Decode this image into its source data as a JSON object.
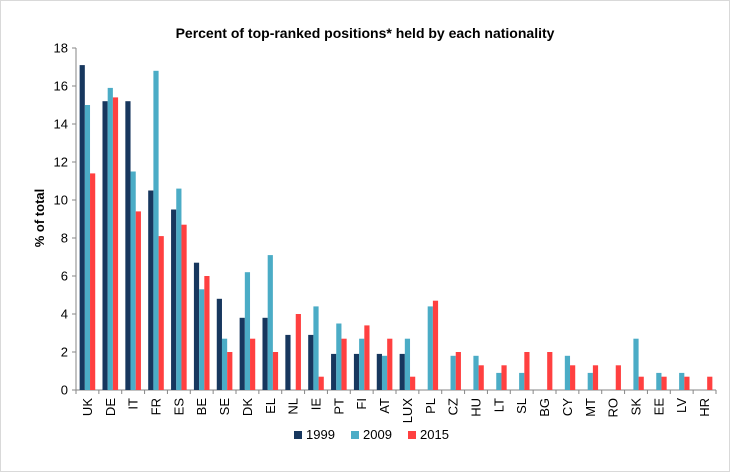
{
  "chart_data": {
    "type": "bar",
    "title": "Percent of top-ranked positions* held by each nationality",
    "ylabel": "% of total",
    "xlabel": "",
    "ylim": [
      0,
      18
    ],
    "yticks": [
      0,
      2,
      4,
      6,
      8,
      10,
      12,
      14,
      16,
      18
    ],
    "grid": false,
    "legend_position": "bottom",
    "categories": [
      "UK",
      "DE",
      "IT",
      "FR",
      "ES",
      "BE",
      "SE",
      "DK",
      "EL",
      "NL",
      "IE",
      "PT",
      "FI",
      "AT",
      "LUX",
      "PL",
      "CZ",
      "HU",
      "LT",
      "SL",
      "BG",
      "CY",
      "MT",
      "RO",
      "SK",
      "EE",
      "LV",
      "HR"
    ],
    "series": [
      {
        "name": "1999",
        "color": "#17375e",
        "values": [
          17.1,
          15.2,
          15.2,
          10.5,
          9.5,
          6.7,
          4.8,
          3.8,
          3.8,
          2.9,
          2.9,
          1.9,
          1.9,
          1.9,
          1.9,
          0,
          0,
          0,
          0,
          0,
          0,
          0,
          0,
          0,
          0,
          0,
          0,
          0
        ]
      },
      {
        "name": "2009",
        "color": "#4bacc6",
        "values": [
          15.0,
          15.9,
          11.5,
          16.8,
          10.6,
          5.3,
          2.7,
          6.2,
          7.1,
          0,
          4.4,
          3.5,
          2.7,
          1.8,
          2.7,
          4.4,
          1.8,
          1.8,
          0.9,
          0.9,
          0,
          1.8,
          0.9,
          0,
          2.7,
          0.9,
          0.9,
          0
        ]
      },
      {
        "name": "2015",
        "color": "#ff4040",
        "values": [
          11.4,
          15.4,
          9.4,
          8.1,
          8.7,
          6.0,
          2.0,
          2.7,
          2.0,
          4.0,
          0.7,
          2.7,
          3.4,
          2.7,
          0.7,
          4.7,
          2.0,
          1.3,
          1.3,
          2.0,
          2.0,
          1.3,
          1.3,
          1.3,
          0.7,
          0.7,
          0.7,
          0.7
        ]
      }
    ]
  }
}
